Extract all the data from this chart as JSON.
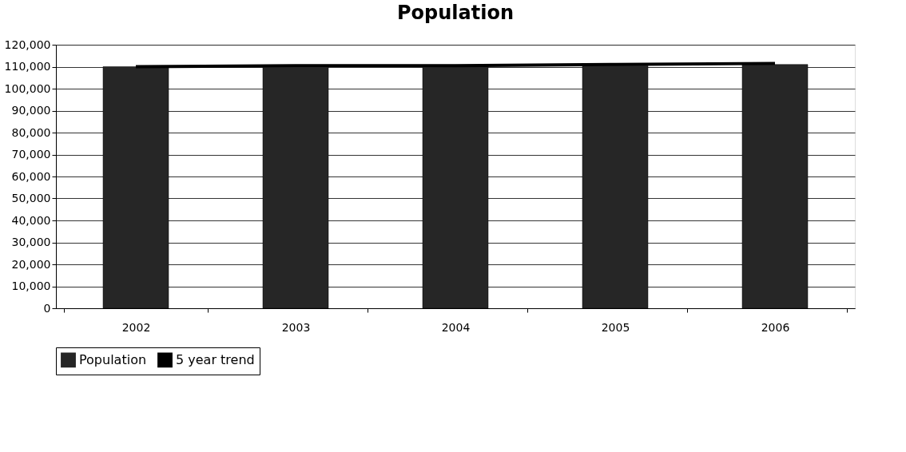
{
  "chart_data": {
    "type": "bar",
    "title": "Population",
    "categories": [
      "2002",
      "2003",
      "2004",
      "2005",
      "2006"
    ],
    "series": [
      {
        "name": "Population",
        "color": "#262626",
        "values": [
          110000,
          110000,
          110500,
          110500,
          111000
        ]
      },
      {
        "name": "5 year trend",
        "type": "line",
        "color": "#000000",
        "values": [
          110000,
          110500,
          110500,
          111000,
          111500
        ]
      }
    ],
    "ylim": [
      0,
      120000
    ],
    "yticks": [
      0,
      {
        "value": 10000,
        "label": "10,000"
      },
      {
        "value": 20000,
        "label": "20,000"
      },
      {
        "value": 30000,
        "label": "30,000"
      },
      {
        "value": 40000,
        "label": "40,000"
      },
      {
        "value": 50000,
        "label": "50,000"
      },
      {
        "value": 60000,
        "label": "60,000"
      },
      {
        "value": 70000,
        "label": "70,000"
      },
      {
        "value": 80000,
        "label": "80,000"
      },
      {
        "value": 90000,
        "label": "90,000"
      },
      {
        "value": 100000,
        "label": "100,000"
      },
      {
        "value": 110000,
        "label": "110,000"
      },
      {
        "value": 120000,
        "label": "120,000"
      }
    ],
    "grid": "y",
    "legend": "bottom",
    "marker": "none",
    "line_style": "solid"
  }
}
